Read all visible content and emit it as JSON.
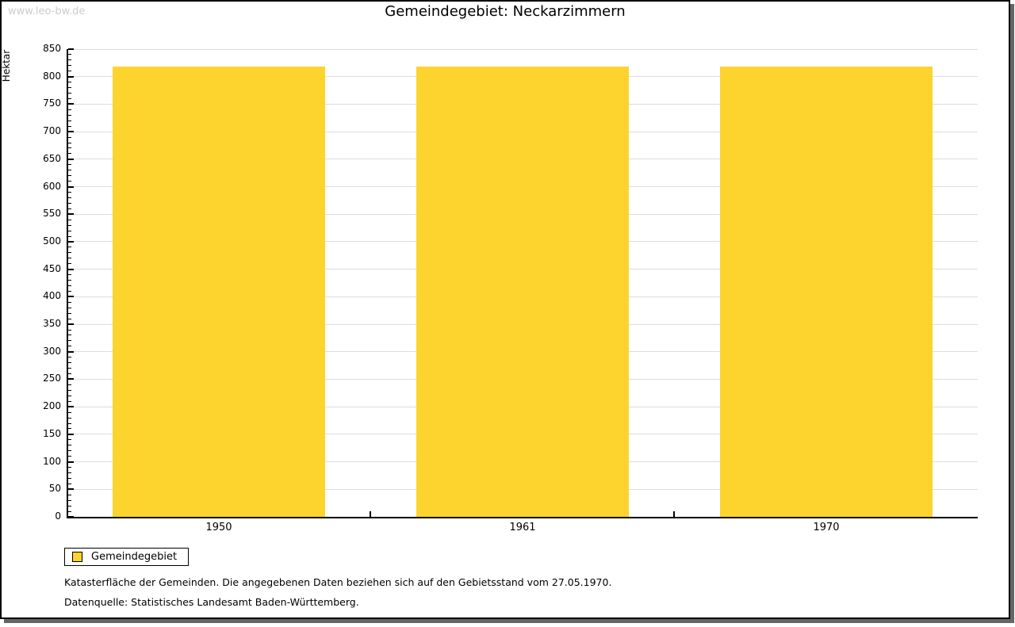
{
  "watermark": "www.leo-bw.de",
  "title": "Gemeindegebiet: Neckarzimmern",
  "colors": {
    "bar": "#FCD42D",
    "grid": "#DDDDDD",
    "axis": "#000000",
    "watermark": "#CCCCCC",
    "frame_shadow": "#666666"
  },
  "chart_data": {
    "type": "bar",
    "title": "Gemeindegebiet: Neckarzimmern",
    "categories": [
      "1950",
      "1961",
      "1970"
    ],
    "series": [
      {
        "name": "Gemeindegebiet",
        "color": "#FCD42D",
        "values": [
          819,
          819,
          819
        ]
      }
    ],
    "xlabel": "",
    "ylabel": "Hektar",
    "ylim": [
      0,
      850
    ],
    "ytick_major": 50,
    "ytick_minor": 10,
    "grid": true,
    "legend_position": "bottom-left"
  },
  "legend": {
    "items": [
      {
        "label": "Gemeindegebiet",
        "color": "#FCD42D"
      }
    ]
  },
  "footer": {
    "line1": "Katasterfläche der Gemeinden. Die angegebenen Daten beziehen sich auf den Gebietsstand vom 27.05.1970.",
    "line2": "Datenquelle: Statistisches Landesamt Baden-Württemberg."
  }
}
